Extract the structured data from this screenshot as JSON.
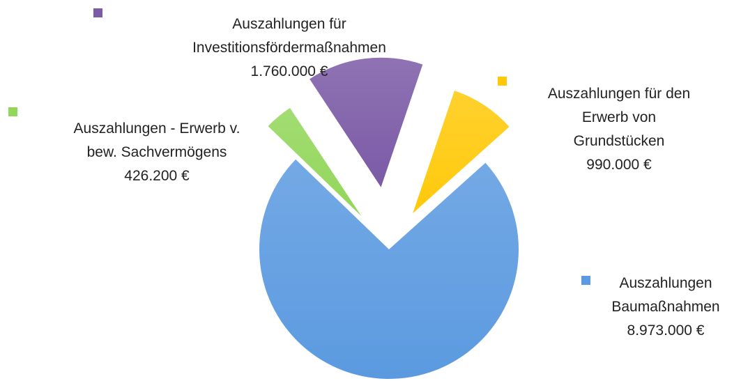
{
  "chart_data": {
    "type": "pie",
    "categories": [
      "Auszahlungen für\nInvestitionsfördermaßnahmen",
      "Auszahlungen für den\nErwerb von\nGrundstücken",
      "Auszahlungen\nBaumaßnahmen",
      "Auszahlungen - Erwerb v.\nbew. Sachvermögens"
    ],
    "values": [
      1760000,
      990000,
      8973000,
      426200
    ],
    "value_labels": [
      "1.760.000 €",
      "990.000 €",
      "8.973.000 €",
      "426.200 €"
    ],
    "colors": [
      "#7b5aa6",
      "#ffc90a",
      "#5b9ae0",
      "#92d65a"
    ]
  }
}
